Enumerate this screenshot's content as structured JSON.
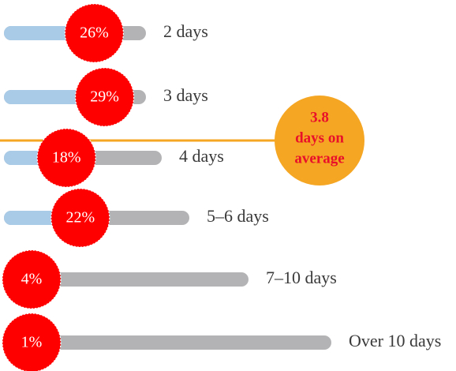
{
  "chart_data": {
    "type": "bar",
    "categories": [
      "2 days",
      "3 days",
      "4 days",
      "5–6 days",
      "7–10 days",
      "Over 10 days"
    ],
    "values": [
      26,
      29,
      18,
      22,
      4,
      1
    ],
    "value_labels": [
      "26%",
      "29%",
      "18%",
      "22%",
      "4%",
      "1%"
    ],
    "color": "#a9cbe8",
    "annotation": [
      "3.8",
      "days on",
      "average"
    ]
  }
}
